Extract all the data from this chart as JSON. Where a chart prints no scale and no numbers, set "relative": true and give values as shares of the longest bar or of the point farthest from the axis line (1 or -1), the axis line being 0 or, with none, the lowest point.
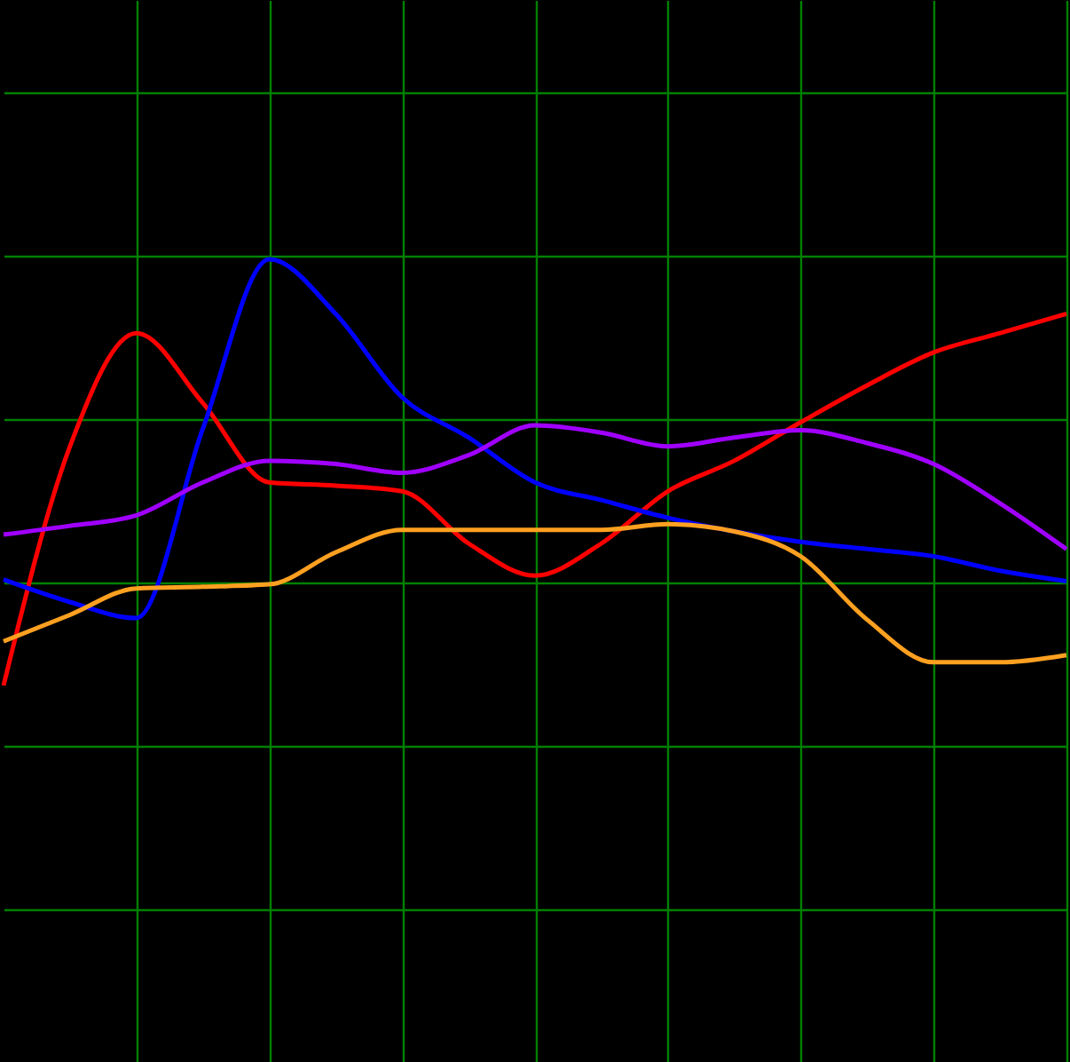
{
  "chart_data": {
    "type": "line",
    "relative": true,
    "grid": true,
    "legend": false,
    "marker": "none",
    "line_style": "solid",
    "categories": [
      null,
      null,
      null,
      null,
      null,
      null,
      null,
      null,
      null,
      null,
      null,
      null,
      null,
      null,
      null,
      null,
      null
    ],
    "series": [
      {
        "color": "#ff0000",
        "values": [
          0.469,
          0.767,
          0.908,
          0.821,
          0.722,
          0.718,
          0.711,
          0.646,
          0.606,
          0.646,
          0.711,
          0.749,
          0.797,
          0.843,
          0.884,
          0.908,
          0.932
        ]
      },
      {
        "color": "#0000ff",
        "values": [
          0.601,
          0.573,
          0.553,
          0.789,
          1,
          0.932,
          0.828,
          0.778,
          0.722,
          0.7,
          0.678,
          0.661,
          0.648,
          0.639,
          0.63,
          0.612,
          0.599
        ]
      },
      {
        "color": "#a000ff",
        "values": [
          0.657,
          0.668,
          0.681,
          0.722,
          0.749,
          0.745,
          0.734,
          0.756,
          0.793,
          0.784,
          0.767,
          0.778,
          0.787,
          0.771,
          0.745,
          0.696,
          0.639
        ]
      },
      {
        "color": "#ffa020",
        "values": [
          0.524,
          0.557,
          0.59,
          0.592,
          0.595,
          0.635,
          0.663,
          0.663,
          0.663,
          0.663,
          0.67,
          0.661,
          0.63,
          0.551,
          0.498,
          0.498,
          0.507
        ]
      }
    ]
  }
}
